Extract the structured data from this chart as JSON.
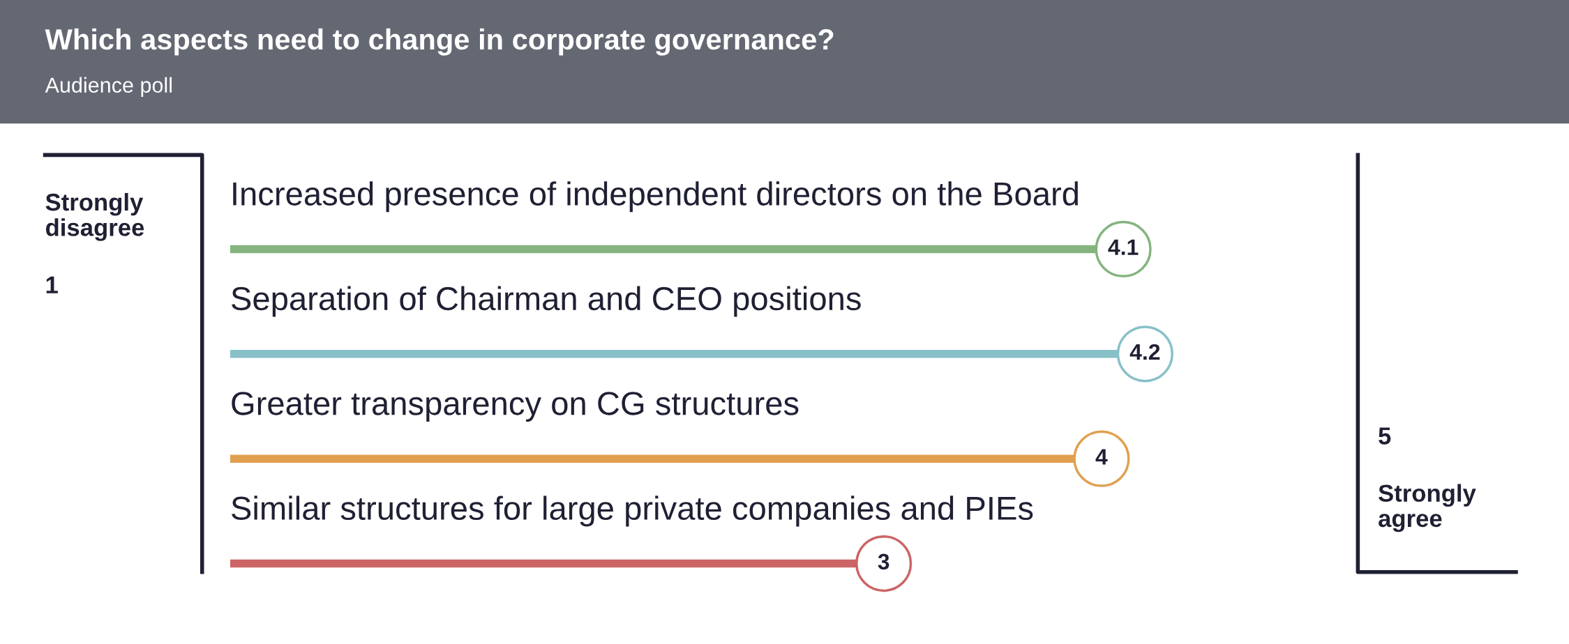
{
  "chart_data": {
    "type": "lollipop",
    "orientation": "horizontal",
    "title": "Which aspects need to change in corporate governance?",
    "subtitle": "Audience poll",
    "categories": [
      "Increased presence of independent directors on the Board",
      "Separation of Chairman and CEO positions",
      "Greater transparency on CG structures",
      "Similar structures for large private companies and PIEs"
    ],
    "values": [
      4.1,
      4.2,
      4,
      3
    ],
    "colors": [
      "#84b47f",
      "#88c0c8",
      "#e0a050",
      "#cc6466"
    ],
    "marker": "circle",
    "data_labels": true,
    "annotations": [
      "Strongly\ndisagree",
      "1",
      "5",
      "Strongly\nagree"
    ]
  }
}
